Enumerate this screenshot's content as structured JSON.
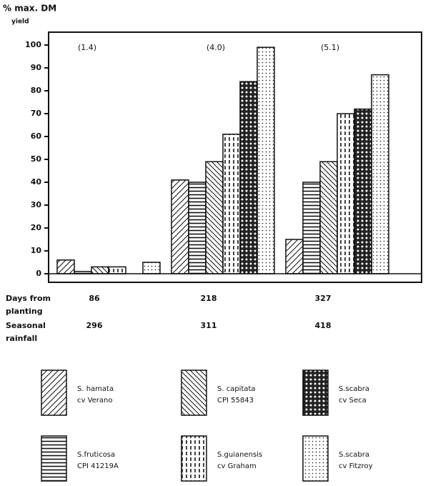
{
  "chart_data": {
    "type": "bar",
    "y_label": [
      "% max. DM",
      "yield"
    ],
    "ylim": [
      0,
      100
    ],
    "yticks": [
      0,
      10,
      20,
      30,
      40,
      50,
      60,
      70,
      80,
      90,
      100
    ],
    "annotations": [
      "(1.4)",
      "(4.0)",
      "(5.1)"
    ],
    "row_labels": [
      [
        "Days from",
        "planting"
      ],
      [
        "Seasonal",
        "rainfall"
      ]
    ],
    "categories": [
      86,
      218,
      327
    ],
    "rainfall": [
      296,
      311,
      418
    ],
    "series": [
      {
        "name": [
          "S. hamata",
          "cv Verano"
        ],
        "color": "#111111",
        "pattern": "diag",
        "values": [
          6,
          41,
          15
        ]
      },
      {
        "name": [
          "S.fruticosa",
          "CPI 41219A"
        ],
        "color": "#111111",
        "pattern": "horiz",
        "values": [
          1,
          40,
          40
        ]
      },
      {
        "name": [
          "S. capitata",
          "CPI 55843"
        ],
        "color": "#111111",
        "pattern": "backdiag",
        "values": [
          3,
          49,
          49
        ]
      },
      {
        "name": [
          "S.guianensis",
          "cv Graham"
        ],
        "color": "#111111",
        "pattern": "vdash",
        "values": [
          3,
          61,
          70
        ]
      },
      {
        "name": [
          "S.scabra",
          "cv Seca"
        ],
        "color": "#111111",
        "pattern": "cross",
        "values": [
          0,
          84,
          72
        ]
      },
      {
        "name": [
          "S.scabra",
          "cv Fitzroy"
        ],
        "color": "#111111",
        "pattern": "dots",
        "values": [
          5,
          99,
          87
        ]
      }
    ]
  }
}
